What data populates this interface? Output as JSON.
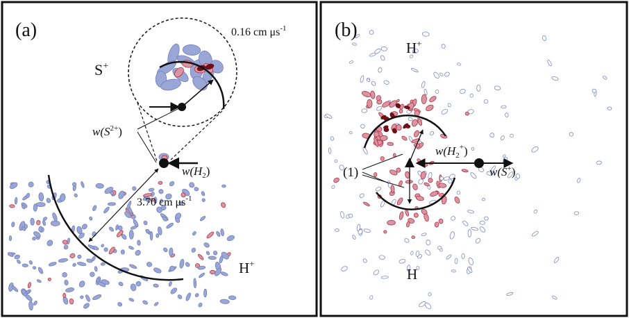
{
  "panels": [
    {
      "tag": "(a)",
      "ion_s": "S",
      "ion_s_sup": "+",
      "ion_h": "H",
      "ion_h_sup": "+",
      "vel_small": "0.16 cm μs",
      "vel_small_sup": "-1",
      "vel_large": "3.70 cm μs",
      "vel_large_sup": "-1",
      "w_s2_pre": "w(S",
      "w_s2_sup": "2+",
      "w_s2_post": ")",
      "w_h2_pre": "w(H",
      "w_h2_sub": "2",
      "w_h2_post": ")"
    },
    {
      "tag": "(b)",
      "ion_h_top": "H",
      "ion_h_top_sup": "+",
      "ion_h_bottom": "H",
      "label_one": "(1)",
      "w_h2p_pre": "w(H",
      "w_h2p_sub": "2",
      "w_h2p_sup": "+",
      "w_h2p_post": ")",
      "w_sp_pre": "w(S",
      "w_sp_sup": "+",
      "w_sp_post": ")"
    }
  ],
  "colors": {
    "low_density": "#9aa6d6",
    "mid_density": "#d995a3",
    "high_density": "#b3313f",
    "peak_density": "#6e0f1b",
    "ink": "#111111"
  }
}
